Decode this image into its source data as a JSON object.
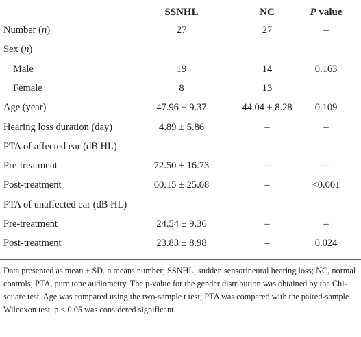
{
  "table": {
    "header": {
      "ssnhl": "SSNHL",
      "nc": "NC",
      "p": [
        "P",
        " value"
      ]
    },
    "rows": [
      {
        "label": [
          "Number (",
          "n",
          ")"
        ],
        "ssnhl": "27",
        "nc": "27",
        "p": "–"
      },
      {
        "label": [
          "Sex (",
          "n",
          ")"
        ]
      },
      {
        "label": [
          "Male"
        ],
        "indent": true,
        "ssnhl": "19",
        "nc": "14",
        "p": "0.163"
      },
      {
        "label": [
          "Female"
        ],
        "indent": true,
        "ssnhl": "8",
        "nc": "13"
      },
      {
        "label": [
          "Age (year)"
        ],
        "ssnhl": "47.96 ± 9.37",
        "nc": "44.04 ± 8.28",
        "p": "0.109"
      },
      {
        "label": [
          "Hearing loss duration (day)"
        ],
        "ssnhl": "4.89 ± 5.86",
        "nc": "–",
        "p": "–"
      },
      {
        "label": [
          "PTA of affected ear (dB HL)"
        ]
      },
      {
        "label": [
          "Pre-treatment"
        ],
        "ssnhl": "72.50 ± 16.73",
        "nc": "–",
        "p": "–"
      },
      {
        "label": [
          "Post-treatment"
        ],
        "ssnhl": "60.15 ± 25.08",
        "nc": "–",
        "p": "<0.001"
      },
      {
        "label": [
          "PTA of unaffected ear (dB HL)"
        ]
      },
      {
        "label": [
          "Pre-treatment"
        ],
        "ssnhl": "24.54 ± 9.36",
        "nc": "–",
        "p": "–"
      },
      {
        "label": [
          "Post-treatment"
        ],
        "ssnhl": "23.83 ± 8.98",
        "nc": "–",
        "p": "0.024"
      }
    ],
    "footnote": "Data presented as mean ± SD. n means number; SSNHL, sudden sensorineural hearing loss; NC, normal controls; PTA, pure tone audiometry. The p-value for the gender distribution was obtained by the Chi-square test. Age was compared using the two-sample t test; PTA was compared with the paired-sample Wilcoxon test. p < 0.05 was considered significant."
  }
}
